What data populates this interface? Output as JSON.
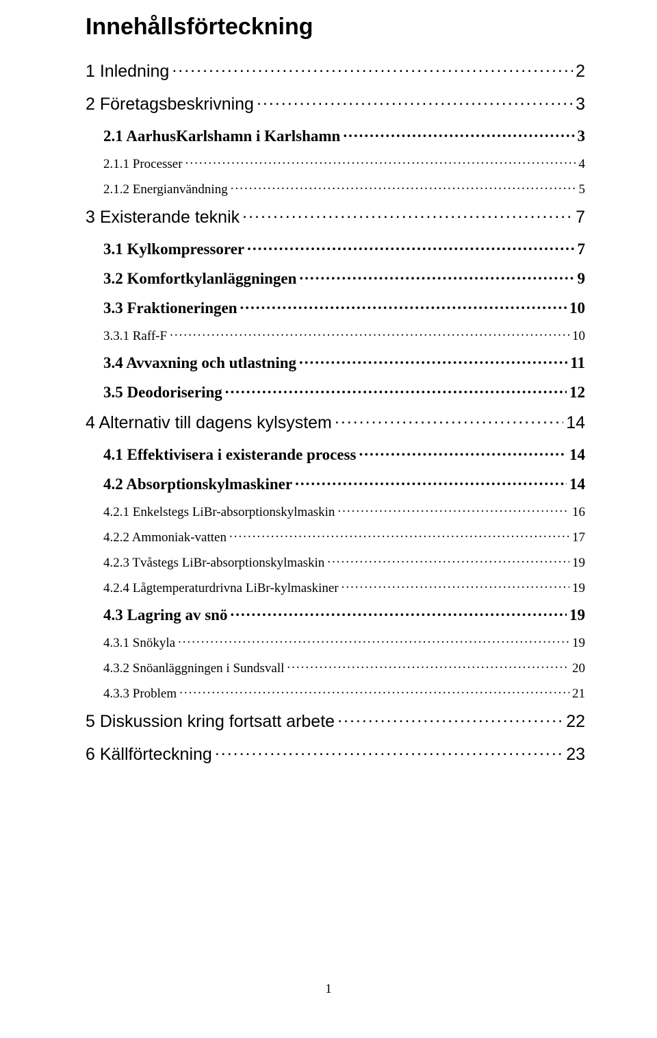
{
  "title": "Innehållsförteckning",
  "page_number": "1",
  "colors": {
    "text": "#000000",
    "background": "#ffffff"
  },
  "fonts": {
    "heading_family": "Arial",
    "body_family": "Times New Roman",
    "title_size_pt": 26,
    "lvl1_size_pt": 19,
    "lvl2_size_pt": 17,
    "lvl3_size_pt": 14
  },
  "entries": [
    {
      "level": 1,
      "label": "1 Inledning",
      "page": "2"
    },
    {
      "level": 1,
      "label": "2 Företagsbeskrivning",
      "page": "3"
    },
    {
      "level": 2,
      "label": "2.1 AarhusKarlshamn i Karlshamn",
      "page": "3"
    },
    {
      "level": 3,
      "label": "2.1.1 Processer",
      "page": "4"
    },
    {
      "level": 3,
      "label": "2.1.2 Energianvändning",
      "page": "5"
    },
    {
      "level": 1,
      "label": "3 Existerande teknik",
      "page": "7"
    },
    {
      "level": 2,
      "label": "3.1 Kylkompressorer",
      "page": "7"
    },
    {
      "level": 2,
      "label": "3.2 Komfortkylanläggningen",
      "page": "9"
    },
    {
      "level": 2,
      "label": "3.3 Fraktioneringen",
      "page": "10"
    },
    {
      "level": 3,
      "label": "3.3.1 Raff-F",
      "page": "10"
    },
    {
      "level": 2,
      "label": "3.4 Avvaxning och utlastning",
      "page": "11"
    },
    {
      "level": 2,
      "label": "3.5 Deodorisering",
      "page": "12"
    },
    {
      "level": 1,
      "label": "4 Alternativ till dagens kylsystem",
      "page": "14"
    },
    {
      "level": 2,
      "label": "4.1 Effektivisera i existerande process",
      "page": "14"
    },
    {
      "level": 2,
      "label": "4.2 Absorptionskylmaskiner",
      "page": "14"
    },
    {
      "level": 3,
      "label": "4.2.1 Enkelstegs LiBr-absorptionskylmaskin",
      "page": "16"
    },
    {
      "level": 3,
      "label": "4.2.2 Ammoniak-vatten",
      "page": "17"
    },
    {
      "level": 3,
      "label": "4.2.3 Tvåstegs LiBr-absorptionskylmaskin",
      "page": "19"
    },
    {
      "level": 3,
      "label": "4.2.4 Lågtemperaturdrivna LiBr-kylmaskiner",
      "page": "19"
    },
    {
      "level": 2,
      "label": "4.3 Lagring av snö",
      "page": "19"
    },
    {
      "level": 3,
      "label": "4.3.1 Snökyla",
      "page": "19"
    },
    {
      "level": 3,
      "label": "4.3.2 Snöanläggningen i Sundsvall",
      "page": "20"
    },
    {
      "level": 3,
      "label": "4.3.3 Problem",
      "page": "21"
    },
    {
      "level": 1,
      "label": "5 Diskussion kring fortsatt arbete",
      "page": "22"
    },
    {
      "level": 1,
      "label": "6 Källförteckning",
      "page": "23"
    }
  ]
}
